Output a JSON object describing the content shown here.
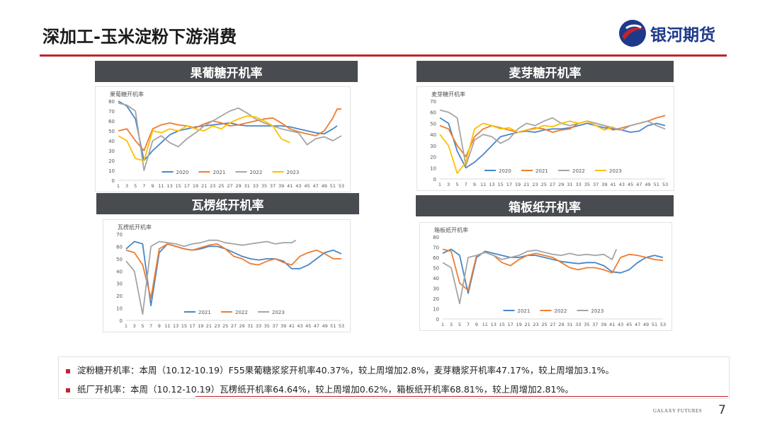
{
  "header": {
    "title": "深加工-玉米淀粉下游消费",
    "logo_text": "银河期货"
  },
  "colors": {
    "accent": "#c0252b",
    "logo_blue": "#1d3a8a",
    "panel_bg": "#484b50"
  },
  "panels": [
    {
      "title": "果葡糖开机率",
      "chart_label": "果葡糖开机率"
    },
    {
      "title": "麦芽糖开机率",
      "chart_label": "麦芽糖开机率"
    },
    {
      "title": "瓦楞纸开机率",
      "chart_label": "瓦楞纸开机率"
    },
    {
      "title": "箱板纸开机率",
      "chart_label": "箱板纸开机率"
    }
  ],
  "chart_data": [
    {
      "type": "line",
      "title": "果葡糖开机率",
      "x_ticks": [
        "1",
        "3",
        "5",
        "7",
        "9",
        "11",
        "13",
        "15",
        "17",
        "19",
        "21",
        "23",
        "25",
        "27",
        "29",
        "31",
        "33",
        "35",
        "37",
        "39",
        "41",
        "43",
        "45",
        "47",
        "49",
        "51",
        "53"
      ],
      "ylim": [
        0,
        80
      ],
      "yticks": [
        0,
        10,
        20,
        30,
        40,
        50,
        60,
        70,
        80
      ],
      "legend": "bottom",
      "series": [
        {
          "name": "2020",
          "color": "#4a86c8",
          "x": [
            1,
            3,
            5,
            7,
            9,
            11,
            13,
            15,
            17,
            19,
            21,
            23,
            25,
            27,
            29,
            31,
            33,
            35,
            37,
            39,
            41,
            43,
            45,
            47,
            49,
            51,
            52
          ],
          "values": [
            80,
            75,
            62,
            20,
            30,
            38,
            46,
            50,
            52,
            54,
            55,
            56,
            57,
            58,
            56,
            55,
            55,
            55,
            55,
            55,
            54,
            52,
            50,
            48,
            47,
            52,
            55
          ]
        },
        {
          "name": "2021",
          "color": "#ed7d31",
          "x": [
            1,
            3,
            5,
            7,
            9,
            11,
            13,
            15,
            17,
            19,
            21,
            23,
            25,
            27,
            29,
            31,
            33,
            35,
            37,
            39,
            41,
            43,
            45,
            47,
            49,
            51,
            52,
            53
          ],
          "values": [
            50,
            52,
            40,
            30,
            52,
            56,
            58,
            56,
            55,
            53,
            57,
            60,
            58,
            55,
            56,
            58,
            60,
            62,
            63,
            58,
            52,
            49,
            47,
            45,
            50,
            63,
            72,
            72
          ]
        },
        {
          "name": "2022",
          "color": "#a5a5a5",
          "x": [
            1,
            3,
            5,
            7,
            9,
            11,
            13,
            15,
            17,
            19,
            21,
            23,
            25,
            27,
            29,
            31,
            33,
            35,
            37,
            39,
            41,
            43,
            45,
            47,
            49,
            51,
            53
          ],
          "values": [
            78,
            76,
            70,
            10,
            40,
            45,
            38,
            34,
            42,
            48,
            55,
            60,
            65,
            70,
            73,
            68,
            62,
            58,
            55,
            52,
            50,
            48,
            36,
            42,
            44,
            40,
            45
          ]
        },
        {
          "name": "2023",
          "color": "#ffc000",
          "x": [
            1,
            3,
            5,
            7,
            9,
            11,
            13,
            15,
            17,
            19,
            21,
            23,
            25,
            27,
            29,
            31,
            33,
            35,
            37,
            39,
            41
          ],
          "values": [
            45,
            40,
            22,
            20,
            50,
            48,
            52,
            50,
            55,
            52,
            50,
            55,
            52,
            58,
            62,
            65,
            64,
            60,
            55,
            42,
            38
          ]
        }
      ]
    },
    {
      "type": "line",
      "title": "麦芽糖开机率",
      "x_ticks": [
        "1",
        "3",
        "5",
        "7",
        "9",
        "11",
        "13",
        "15",
        "17",
        "19",
        "21",
        "23",
        "25",
        "27",
        "29",
        "31",
        "33",
        "35",
        "37",
        "39",
        "41",
        "43",
        "45",
        "47",
        "49",
        "51",
        "53"
      ],
      "ylim": [
        0,
        70
      ],
      "yticks": [
        0,
        10,
        20,
        30,
        40,
        50,
        60,
        70
      ],
      "legend": "bottom",
      "series": [
        {
          "name": "2020",
          "color": "#4a86c8",
          "x": [
            1,
            3,
            5,
            7,
            9,
            11,
            13,
            15,
            17,
            19,
            21,
            23,
            25,
            27,
            29,
            31,
            33,
            35,
            37,
            39,
            41,
            43,
            45,
            47,
            49,
            51,
            53
          ],
          "values": [
            55,
            50,
            25,
            10,
            15,
            22,
            30,
            38,
            40,
            42,
            43,
            42,
            44,
            45,
            45,
            46,
            48,
            50,
            48,
            46,
            45,
            44,
            42,
            43,
            48,
            50,
            48
          ]
        },
        {
          "name": "2021",
          "color": "#ed7d31",
          "x": [
            1,
            3,
            5,
            7,
            9,
            11,
            13,
            15,
            17,
            19,
            21,
            23,
            25,
            27,
            29,
            31,
            33,
            35,
            37,
            39,
            41,
            43,
            45,
            47,
            49,
            51,
            53
          ],
          "values": [
            48,
            45,
            30,
            20,
            38,
            45,
            48,
            46,
            44,
            42,
            44,
            46,
            45,
            42,
            44,
            45,
            50,
            52,
            50,
            48,
            44,
            46,
            48,
            50,
            52,
            55,
            57
          ]
        },
        {
          "name": "2022",
          "color": "#a5a5a5",
          "x": [
            1,
            3,
            5,
            7,
            9,
            11,
            13,
            15,
            17,
            19,
            21,
            23,
            25,
            27,
            29,
            31,
            33,
            35,
            37,
            39,
            41,
            43,
            45,
            47,
            49,
            51,
            53
          ],
          "values": [
            62,
            60,
            55,
            12,
            35,
            40,
            38,
            32,
            36,
            45,
            50,
            48,
            52,
            55,
            50,
            48,
            50,
            52,
            50,
            48,
            46,
            44,
            48,
            50,
            52,
            48,
            45
          ]
        },
        {
          "name": "2023",
          "color": "#ffc000",
          "x": [
            1,
            3,
            5,
            7,
            9,
            11,
            13,
            15,
            17,
            19,
            21,
            23,
            25,
            27,
            29,
            31,
            33,
            35,
            37,
            39,
            41
          ],
          "values": [
            40,
            30,
            5,
            15,
            45,
            50,
            48,
            45,
            46,
            42,
            44,
            45,
            48,
            47,
            50,
            52,
            50,
            52,
            48,
            44,
            47
          ]
        }
      ]
    },
    {
      "type": "line",
      "title": "瓦楞纸开机率",
      "x_ticks": [
        "1",
        "3",
        "5",
        "7",
        "9",
        "11",
        "13",
        "15",
        "17",
        "19",
        "21",
        "23",
        "25",
        "27",
        "29",
        "31",
        "33",
        "35",
        "37",
        "39",
        "41",
        "43",
        "45",
        "47",
        "49",
        "51",
        "53"
      ],
      "ylim": [
        0,
        70
      ],
      "yticks": [
        0,
        10,
        20,
        30,
        40,
        50,
        60,
        70
      ],
      "legend": "bottom",
      "series": [
        {
          "name": "2021",
          "color": "#4a86c8",
          "x": [
            1,
            3,
            5,
            7,
            9,
            11,
            13,
            15,
            17,
            19,
            21,
            23,
            25,
            27,
            29,
            31,
            33,
            35,
            37,
            39,
            41,
            43,
            45,
            47,
            49,
            51,
            53
          ],
          "values": [
            58,
            64,
            62,
            12,
            55,
            62,
            60,
            58,
            57,
            58,
            60,
            60,
            58,
            55,
            52,
            50,
            49,
            50,
            50,
            48,
            42,
            42,
            45,
            50,
            55,
            57,
            54
          ]
        },
        {
          "name": "2022",
          "color": "#ed7d31",
          "x": [
            1,
            3,
            5,
            7,
            9,
            11,
            13,
            15,
            17,
            19,
            21,
            23,
            25,
            27,
            29,
            31,
            33,
            35,
            37,
            39,
            41,
            43,
            45,
            47,
            49,
            51,
            53
          ],
          "values": [
            57,
            55,
            45,
            18,
            58,
            62,
            60,
            58,
            57,
            59,
            61,
            62,
            58,
            52,
            50,
            46,
            45,
            48,
            50,
            47,
            45,
            52,
            55,
            57,
            54,
            50,
            50
          ]
        },
        {
          "name": "2023",
          "color": "#a5a5a5",
          "x": [
            1,
            3,
            5,
            7,
            9,
            11,
            13,
            15,
            17,
            19,
            21,
            23,
            25,
            27,
            29,
            31,
            33,
            35,
            37,
            39,
            41,
            42
          ],
          "values": [
            48,
            40,
            5,
            60,
            64,
            63,
            62,
            60,
            62,
            63,
            65,
            65,
            63,
            62,
            61,
            62,
            63,
            64,
            62,
            63,
            63,
            65
          ]
        }
      ]
    },
    {
      "type": "line",
      "title": "箱板纸开机率",
      "x_ticks": [
        "1",
        "3",
        "5",
        "7",
        "9",
        "11",
        "13",
        "15",
        "17",
        "19",
        "21",
        "23",
        "25",
        "27",
        "29",
        "31",
        "33",
        "35",
        "37",
        "39",
        "41",
        "43",
        "45",
        "47",
        "49",
        "51",
        "53"
      ],
      "ylim": [
        0,
        80
      ],
      "yticks": [
        0,
        10,
        20,
        30,
        40,
        50,
        60,
        70,
        80
      ],
      "legend": "bottom",
      "series": [
        {
          "name": "2021",
          "color": "#4a86c8",
          "x": [
            1,
            3,
            5,
            7,
            9,
            11,
            13,
            15,
            17,
            19,
            21,
            23,
            25,
            27,
            29,
            31,
            33,
            35,
            37,
            39,
            41,
            43,
            45,
            47,
            49,
            51,
            53
          ],
          "values": [
            64,
            68,
            62,
            25,
            60,
            66,
            64,
            62,
            60,
            60,
            62,
            62,
            60,
            58,
            56,
            55,
            54,
            55,
            55,
            52,
            46,
            45,
            48,
            55,
            60,
            62,
            60
          ]
        },
        {
          "name": "2022",
          "color": "#ed7d31",
          "x": [
            1,
            3,
            5,
            7,
            9,
            11,
            13,
            15,
            17,
            19,
            21,
            23,
            25,
            27,
            29,
            31,
            33,
            35,
            37,
            39,
            41,
            43,
            45,
            47,
            49,
            51,
            53
          ],
          "values": [
            68,
            66,
            35,
            28,
            62,
            65,
            62,
            55,
            52,
            58,
            62,
            64,
            62,
            60,
            55,
            50,
            48,
            50,
            50,
            48,
            45,
            60,
            63,
            62,
            60,
            58,
            57
          ]
        },
        {
          "name": "2023",
          "color": "#a5a5a5",
          "x": [
            1,
            3,
            5,
            7,
            9,
            11,
            13,
            15,
            17,
            19,
            21,
            23,
            25,
            27,
            29,
            31,
            33,
            35,
            37,
            39,
            41,
            42
          ],
          "values": [
            55,
            50,
            15,
            60,
            62,
            65,
            62,
            58,
            60,
            62,
            66,
            67,
            65,
            63,
            62,
            64,
            62,
            63,
            62,
            63,
            58,
            68
          ]
        }
      ]
    }
  ],
  "notes": [
    "淀粉糖开机率：本周（10.12-10.19）F55果葡糖浆浆开机率40.37%，较上周增加2.8%，麦芽糖浆开机率47.17%，较上周增加3.1%。",
    "纸厂开机率：本周（10.12-10.19）瓦楞纸开机率64.64%，较上周增加0.62%，箱板纸开机率68.81%，较上周增加2.81%。"
  ],
  "footer": {
    "brand": "GALAXY FUTURES",
    "page": "7"
  }
}
